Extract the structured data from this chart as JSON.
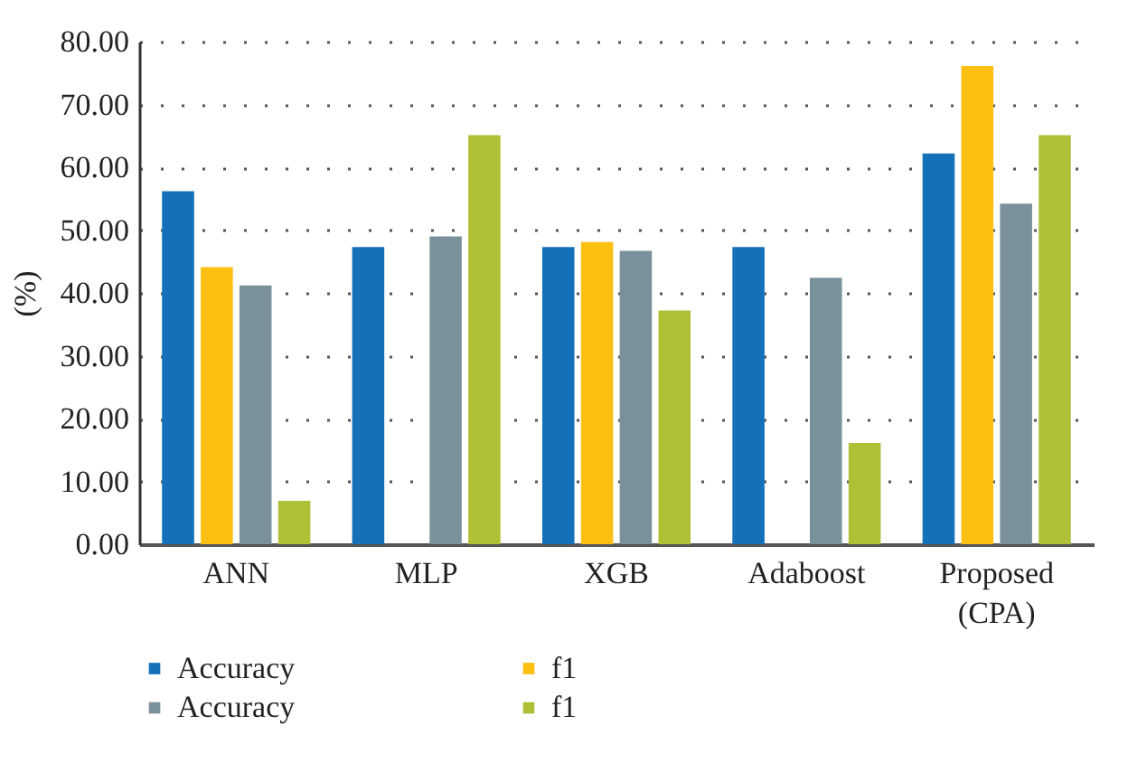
{
  "chart_data": {
    "type": "bar",
    "ylabel": "(%)",
    "categories": [
      "ANN",
      "MLP",
      "XGB",
      "Adaboost",
      "Proposed (CPA)"
    ],
    "series": [
      {
        "name": "Accuracy",
        "color": "#1470b8",
        "values": [
          56.2,
          47.3,
          47.3,
          47.3,
          62.2
        ]
      },
      {
        "name": "f1",
        "color": "#fcbf12",
        "values": [
          44.1,
          null,
          48.1,
          null,
          76.1
        ]
      },
      {
        "name": "Accuracy",
        "color": "#7a919c",
        "values": [
          41.2,
          49.0,
          46.7,
          42.4,
          54.2
        ]
      },
      {
        "name": "f1",
        "color": "#afc037",
        "values": [
          6.9,
          65.1,
          37.2,
          16.1,
          65.1
        ]
      }
    ],
    "ylim": [
      0,
      80
    ],
    "yticks": [
      {
        "value": 0,
        "label": "0.00"
      },
      {
        "value": 10,
        "label": "10.00"
      },
      {
        "value": 20,
        "label": "20.00"
      },
      {
        "value": 30,
        "label": "30.00"
      },
      {
        "value": 40,
        "label": "40.00"
      },
      {
        "value": 50,
        "label": "50.00"
      },
      {
        "value": 60,
        "label": "60.00"
      },
      {
        "value": 70,
        "label": "70.00"
      },
      {
        "value": 80,
        "label": "80.00"
      }
    ],
    "grid": "y",
    "legend": "bottom"
  }
}
